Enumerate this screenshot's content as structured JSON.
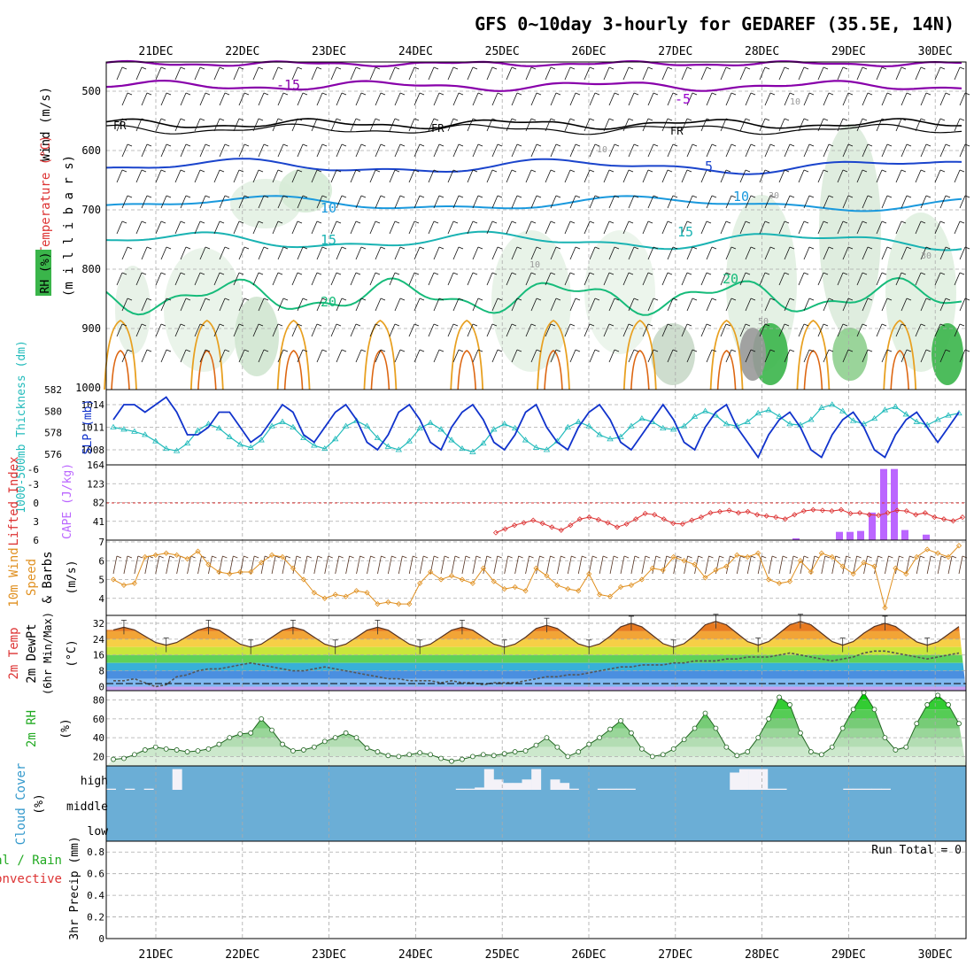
{
  "title": "GFS 0~10day 3-hourly for GEDAREF (35.5E, 14N)",
  "dates": [
    "21DEC",
    "22DEC",
    "23DEC",
    "24DEC",
    "25DEC",
    "26DEC",
    "27DEC",
    "28DEC",
    "29DEC",
    "30DEC"
  ],
  "colors": {
    "temp_minus15": "#8800aa",
    "temp_minus5": "#9900cc",
    "freezing": "#000000",
    "temp_5": "#1a44cc",
    "temp_10": "#1a99dd",
    "temp_15": "#1ab3b3",
    "temp_20": "#16bb7a",
    "temp_warm": "#e8a020",
    "temp_hot": "#dd6611",
    "rh_contour": "#aaaaaa",
    "slp": "#1133cc",
    "thickness": "#22bbbb",
    "cape": "#bb66ff",
    "lifted_index": "#dd3333",
    "wind_speed": "#e09020",
    "rh2m": "#22bb22",
    "cloud_bg": "#6baed6",
    "cloud_fill": "#f4f2f8"
  },
  "panels": {
    "upper": {
      "ylabel_wind": "Wind (m/s)",
      "ylabel_temp": "Temperature (°C)",
      "ylabel_rh": "RH (%)",
      "ylabel_pressure": "(m i l l i b a r s)",
      "ticks": [
        "500",
        "600",
        "700",
        "800",
        "900",
        "1000"
      ],
      "labels": [
        "-15",
        "-5",
        "FR",
        "5",
        "10",
        "15",
        "20",
        "10",
        "30",
        "50"
      ]
    },
    "slp": {
      "ylabel_thick": "1000-500mb Thickness (dm)",
      "ylabel_slp": "SLP (mb)",
      "ticks_thick": [
        "582",
        "580",
        "578",
        "576"
      ],
      "ticks_slp": [
        "1014",
        "1011",
        "1008"
      ]
    },
    "cape": {
      "ylabel_li": "Lifted Index",
      "ylabel_cape": "CAPE (J/kg)",
      "ticks_li": [
        "-6",
        "-3",
        "0",
        "3",
        "6"
      ],
      "ticks_cape": [
        "164",
        "123",
        "82",
        "41"
      ]
    },
    "wind10": {
      "ylabel_1": "10m Wind",
      "ylabel_2": "Speed",
      "ylabel_3": "& Barbs",
      "ylabel_unit": "(m/s)",
      "ticks": [
        "7",
        "6",
        "5",
        "4"
      ]
    },
    "temp2m": {
      "ylabel_1": "2m Temp",
      "ylabel_2": "2m DewPt",
      "ylabel_3": "(6hr Min/Max)",
      "ylabel_unit": "(°C)",
      "ticks": [
        "32",
        "24",
        "16",
        "8",
        "0"
      ]
    },
    "rh2m": {
      "ylabel": "2m RH",
      "ylabel_unit": "(%)",
      "ticks": [
        "80",
        "60",
        "40",
        "20"
      ]
    },
    "cloud": {
      "ylabel": "Cloud Cover",
      "ylabel_unit": "(%)",
      "ticks": [
        "high",
        "middle",
        "low"
      ]
    },
    "precip": {
      "ylabel_1": "Total / Rain",
      "ylabel_2": "Convective",
      "ylabel_3": "3hr Precip (mm)",
      "ticks": [
        "0.8",
        "0.6",
        "0.4",
        "0.2",
        "0"
      ],
      "run_total": "Run Total = 0"
    }
  },
  "chart_data": [
    {
      "type": "line",
      "name": "SLP (mb)",
      "x": "3-hourly steps from 20DEC 12Z to 30DEC 12Z",
      "values": [
        1012,
        1014,
        1014,
        1013,
        1014,
        1015,
        1013,
        1010,
        1010,
        1011,
        1013,
        1013,
        1011,
        1009,
        1010,
        1012,
        1014,
        1013,
        1010,
        1009,
        1011,
        1013,
        1014,
        1012,
        1009,
        1008,
        1010,
        1013,
        1014,
        1012,
        1009,
        1008,
        1011,
        1013,
        1014,
        1012,
        1009,
        1008,
        1010,
        1013,
        1014,
        1011,
        1009,
        1008,
        1011,
        1013,
        1014,
        1012,
        1009,
        1008,
        1010,
        1012,
        1014,
        1012,
        1009,
        1008,
        1011,
        1013,
        1014,
        1011,
        1009,
        1007,
        1010,
        1012,
        1013,
        1011,
        1008,
        1007,
        1010,
        1012,
        1013,
        1011,
        1008,
        1007,
        1010,
        1012,
        1013,
        1011,
        1009,
        1011,
        1013
      ],
      "ylim": [
        1006,
        1016
      ]
    },
    {
      "type": "line",
      "name": "1000-500mb Thickness (dm)",
      "values": [
        578.5,
        578.3,
        578.1,
        577.8,
        577.2,
        576.5,
        576.3,
        577.0,
        578.2,
        578.8,
        578.4,
        577.6,
        576.9,
        576.6,
        577.3,
        578.6,
        579.0,
        578.5,
        577.5,
        576.8,
        576.5,
        577.4,
        578.6,
        579.1,
        578.6,
        577.5,
        576.7,
        576.4,
        577.2,
        578.4,
        578.9,
        578.3,
        577.3,
        576.5,
        576.2,
        577.0,
        578.3,
        578.8,
        578.4,
        577.3,
        576.6,
        576.4,
        577.2,
        578.5,
        579.0,
        578.6,
        577.8,
        577.4,
        577.6,
        578.6,
        579.3,
        579.0,
        578.4,
        578.3,
        578.6,
        579.5,
        580.0,
        579.6,
        578.8,
        578.6,
        579.0,
        579.8,
        580.1,
        579.5,
        578.8,
        578.7,
        579.2,
        580.3,
        580.6,
        580.0,
        579.1,
        578.8,
        579.3,
        580.1,
        580.4,
        579.7,
        579.0,
        578.7,
        579.2,
        579.6,
        579.8
      ],
      "ylim": [
        575,
        582
      ]
    },
    {
      "type": "bar",
      "name": "CAPE (J/kg)",
      "bars": [
        {
          "x": "28DEC 09Z",
          "value": 4
        },
        {
          "x": "28DEC 18Z",
          "value": 18
        },
        {
          "x": "28DEC 21Z",
          "value": 18
        },
        {
          "x": "29DEC 00Z",
          "value": 20
        },
        {
          "x": "29DEC 03Z",
          "value": 60
        },
        {
          "x": "29DEC 09Z",
          "value": 155
        },
        {
          "x": "29DEC 12Z",
          "value": 155
        },
        {
          "x": "29DEC 15Z",
          "value": 22
        },
        {
          "x": "30DEC 00Z",
          "value": 12
        }
      ],
      "ylim": [
        0,
        164
      ]
    },
    {
      "type": "line",
      "name": "Lifted Index",
      "note": "drawn from 25DEC onward",
      "values": [
        4.8,
        4.2,
        3.6,
        3.2,
        2.8,
        3.3,
        3.9,
        4.4,
        3.6,
        2.6,
        2.3,
        2.7,
        3.2,
        3.9,
        3.4,
        2.6,
        1.7,
        1.9,
        2.6,
        3.3,
        3.4,
        2.8,
        2.3,
        1.6,
        1.4,
        1.2,
        1.6,
        1.4,
        1.9,
        2.1,
        2.3,
        2.6,
        1.9,
        1.3,
        1.1,
        1.2,
        1.3,
        1.1,
        1.7,
        1.6,
        1.9,
        2.0,
        1.6,
        1.2,
        1.3,
        1.9,
        1.6,
        2.3,
        2.6,
        2.9,
        2.3
      ],
      "ylim": [
        -6,
        6
      ]
    },
    {
      "type": "line",
      "name": "10m Wind Speed (m/s)",
      "values": [
        5.0,
        4.7,
        4.8,
        6.2,
        6.3,
        6.4,
        6.3,
        6.1,
        6.5,
        5.8,
        5.4,
        5.3,
        5.4,
        5.4,
        5.9,
        6.3,
        6.2,
        5.6,
        5.0,
        4.3,
        4.0,
        4.2,
        4.1,
        4.4,
        4.3,
        3.7,
        3.8,
        3.7,
        3.7,
        4.8,
        5.4,
        5.0,
        5.2,
        5.0,
        4.8,
        5.6,
        4.9,
        4.5,
        4.6,
        4.4,
        5.6,
        5.2,
        4.7,
        4.5,
        4.4,
        5.3,
        4.2,
        4.1,
        4.6,
        4.7,
        5.0,
        5.6,
        5.5,
        6.2,
        6.0,
        5.8,
        5.1,
        5.5,
        5.7,
        6.3,
        6.2,
        6.4,
        5.0,
        4.8,
        4.9,
        6.0,
        5.4,
        6.4,
        6.2,
        5.7,
        5.3,
        5.9,
        5.7,
        3.5,
        5.6,
        5.3,
        6.2,
        6.6,
        6.4,
        6.2,
        6.8
      ],
      "ylim": [
        3,
        7
      ]
    },
    {
      "type": "line",
      "name": "2m Temp (°C)",
      "daily_max": [
        30,
        30,
        30,
        30,
        30,
        31,
        32,
        33,
        33,
        32
      ],
      "daily_min": [
        21,
        20,
        20,
        20,
        20,
        20,
        20,
        21,
        21,
        21
      ],
      "ylim": [
        -2,
        36
      ]
    },
    {
      "type": "line",
      "name": "2m DewPt (°C)",
      "values": [
        3,
        3,
        4,
        2,
        0,
        1,
        5,
        6,
        8,
        9,
        9,
        10,
        11,
        12,
        11,
        10,
        9,
        8,
        8,
        9,
        10,
        9,
        8,
        7,
        6,
        5,
        4,
        4,
        3,
        3,
        3,
        2,
        3,
        2,
        2,
        1,
        2,
        2,
        2,
        3,
        4,
        5,
        5,
        6,
        6,
        7,
        8,
        9,
        10,
        10,
        11,
        11,
        11,
        12,
        12,
        13,
        13,
        13,
        14,
        14,
        15,
        15,
        15,
        16,
        17,
        16,
        15,
        14,
        13,
        14,
        15,
        17,
        18,
        18,
        17,
        16,
        15,
        14,
        15,
        16,
        17
      ],
      "ylim": [
        -2,
        36
      ]
    },
    {
      "type": "area",
      "name": "2m RH (%)",
      "values": [
        17,
        18,
        22,
        27,
        30,
        28,
        27,
        25,
        26,
        28,
        33,
        40,
        44,
        45,
        60,
        48,
        33,
        26,
        27,
        30,
        36,
        40,
        45,
        40,
        29,
        25,
        21,
        20,
        22,
        24,
        22,
        18,
        15,
        17,
        20,
        22,
        21,
        23,
        25,
        26,
        32,
        40,
        30,
        20,
        25,
        33,
        40,
        49,
        58,
        45,
        28,
        20,
        22,
        28,
        38,
        50,
        66,
        50,
        30,
        21,
        25,
        40,
        60,
        83,
        75,
        45,
        25,
        22,
        30,
        50,
        70,
        88,
        70,
        40,
        27,
        30,
        55,
        75,
        85,
        75,
        55
      ],
      "ylim": [
        10,
        90
      ]
    },
    {
      "type": "bar",
      "name": "Cloud Cover high (%)",
      "values": [
        5,
        0,
        5,
        0,
        5,
        0,
        0,
        90,
        0,
        0,
        0,
        0,
        0,
        0,
        0,
        0,
        0,
        0,
        0,
        0,
        0,
        0,
        0,
        0,
        0,
        0,
        0,
        0,
        0,
        0,
        0,
        0,
        0,
        0,
        0,
        0,
        0,
        5,
        5,
        10,
        90,
        45,
        30,
        30,
        45,
        90,
        0,
        45,
        30,
        5,
        0,
        0,
        5,
        5,
        5,
        5,
        0,
        0,
        0,
        0,
        0,
        0,
        0,
        0,
        0,
        0,
        75,
        90,
        90,
        90,
        5,
        5,
        0,
        0,
        0,
        0,
        0,
        0,
        5,
        5,
        5,
        5,
        5,
        0,
        0,
        0,
        0,
        0,
        0,
        0,
        0
      ],
      "ylim": [
        0,
        100
      ]
    },
    {
      "type": "bar",
      "name": "3hr Precip (mm)",
      "values": [],
      "ylim": [
        0,
        0.9
      ]
    }
  ]
}
